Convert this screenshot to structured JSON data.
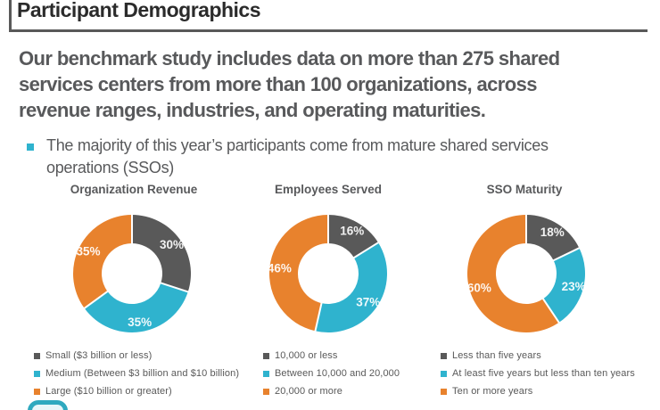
{
  "page": {
    "title": "Participant Demographics",
    "headline_lines": [
      "Our benchmark study includes data on more than 275 shared",
      "services centers from more than 100 organizations, across",
      "revenue ranges, industries, and operating maturities."
    ],
    "bullet_lines": [
      "The majority of this year’s participants come from mature shared services",
      "operations (SSOs)"
    ]
  },
  "colors": {
    "series_gray": "#595959",
    "series_cyan": "#2fb3ce",
    "series_orange": "#e8822d",
    "accent_teal": "#2fb3ce",
    "rule": "#595959",
    "logo_teal": "#2fa9bf"
  },
  "chart_data": [
    {
      "type": "pie",
      "title": "Organization Revenue",
      "labels": [
        "Small ($3 billion or less)",
        "Medium (Between $3 billion and $10 billion)",
        "Large ($10 billion or greater)"
      ],
      "values": [
        30,
        35,
        35
      ],
      "value_labels": [
        "30%",
        "35%",
        "35%"
      ],
      "colors": [
        "#595959",
        "#2fb3ce",
        "#e8822d"
      ],
      "legend_position": "bottom-left",
      "donut": true,
      "start_angle_deg": 0,
      "direction": "clockwise"
    },
    {
      "type": "pie",
      "title": "Employees Served",
      "labels": [
        "10,000 or less",
        "Between 10,000 and 20,000",
        "20,000 or more"
      ],
      "values": [
        16,
        37,
        46
      ],
      "value_labels": [
        "16%",
        "37%",
        "46%"
      ],
      "colors": [
        "#595959",
        "#2fb3ce",
        "#e8822d"
      ],
      "legend_position": "bottom-left",
      "donut": true,
      "start_angle_deg": 0,
      "direction": "clockwise"
    },
    {
      "type": "pie",
      "title": "SSO Maturity",
      "labels": [
        "Less than five years",
        "At least five years but less than ten years",
        "Ten or more years"
      ],
      "values": [
        18,
        23,
        60
      ],
      "value_labels": [
        "18%",
        "23%",
        "60%"
      ],
      "colors": [
        "#595959",
        "#2fb3ce",
        "#e8822d"
      ],
      "legend_position": "bottom-left",
      "donut": true,
      "start_angle_deg": 0,
      "direction": "clockwise"
    }
  ]
}
